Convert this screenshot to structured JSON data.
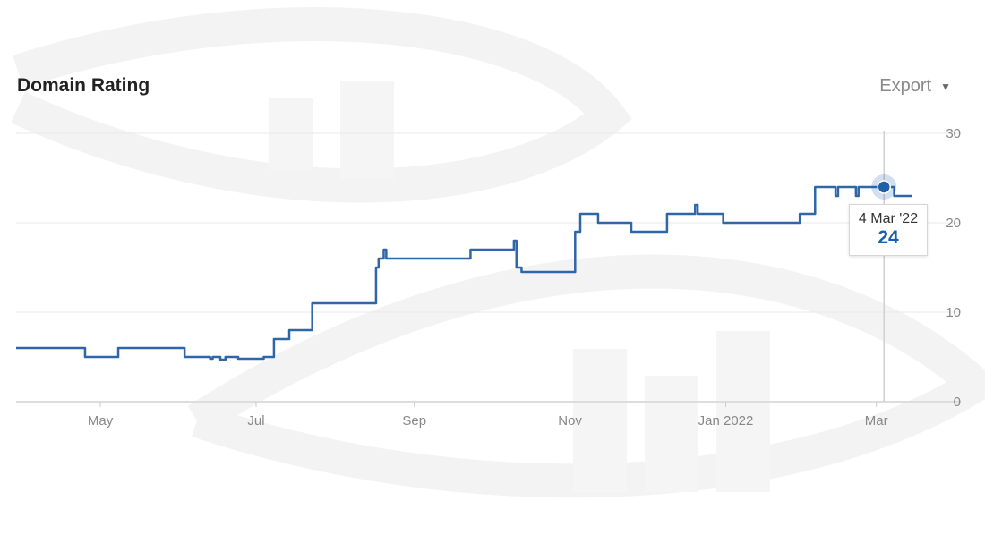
{
  "header": {
    "title": "Domain Rating",
    "export_label": "Export",
    "export_icon": "caret-down-icon"
  },
  "tooltip": {
    "date": "4 Mar '22",
    "value": "24"
  },
  "colors": {
    "line": "#2e66a8",
    "marker": "#1f5fa8",
    "grid": "#e9e9e9",
    "crosshair": "#d0d0d0",
    "tick": "#888888"
  },
  "chart_data": {
    "type": "line",
    "title": "Domain Rating",
    "xlabel": "",
    "ylabel": "",
    "ylim": [
      0,
      30
    ],
    "yticks": [
      0,
      10,
      20,
      30
    ],
    "ytick_labels": [
      "0",
      "10",
      "20",
      "30"
    ],
    "xlim": [
      "2021-03-29",
      "2022-03-19"
    ],
    "xticks": [
      "2021-05-01",
      "2021-07-01",
      "2021-09-01",
      "2021-11-01",
      "2022-01-01",
      "2022-03-01"
    ],
    "xtick_labels": [
      "May",
      "Jul",
      "Sep",
      "Nov",
      "Jan 2022",
      "Mar"
    ],
    "grid": true,
    "y_axis_position": "right",
    "highlight": {
      "x": "2022-03-04",
      "y": 24
    },
    "series": [
      {
        "line_shape": "step",
        "x": [
          "2021-03-29",
          "2021-04-25",
          "2021-05-08",
          "2021-06-03",
          "2021-06-13",
          "2021-06-14",
          "2021-06-17",
          "2021-06-19",
          "2021-06-24",
          "2021-07-04",
          "2021-07-08",
          "2021-07-09",
          "2021-07-12",
          "2021-07-14",
          "2021-07-23",
          "2021-07-25",
          "2021-08-05",
          "2021-08-17",
          "2021-08-18",
          "2021-08-20",
          "2021-08-21",
          "2021-08-23",
          "2021-08-24",
          "2021-09-23",
          "2021-10-10",
          "2021-10-11",
          "2021-10-13",
          "2021-11-03",
          "2021-11-05",
          "2021-11-09",
          "2021-11-12",
          "2021-11-25",
          "2021-12-09",
          "2021-12-20",
          "2021-12-21",
          "2021-12-23",
          "2021-12-31",
          "2022-01-30",
          "2022-02-05",
          "2022-02-06",
          "2022-02-13",
          "2022-02-14",
          "2022-02-20",
          "2022-02-21",
          "2022-02-22",
          "2022-03-04",
          "2022-03-08",
          "2022-03-15"
        ],
        "y": [
          6,
          5,
          6,
          5,
          4.8,
          5,
          4.7,
          5,
          4.8,
          5,
          7,
          7,
          7,
          8,
          11,
          11,
          11,
          15,
          16,
          17,
          16,
          16,
          16,
          17,
          18,
          15,
          14.5,
          19,
          21,
          21,
          20,
          19,
          21,
          22,
          21,
          21,
          20,
          21,
          24,
          24,
          23,
          24,
          24,
          23,
          24,
          24,
          23,
          23
        ]
      }
    ]
  }
}
